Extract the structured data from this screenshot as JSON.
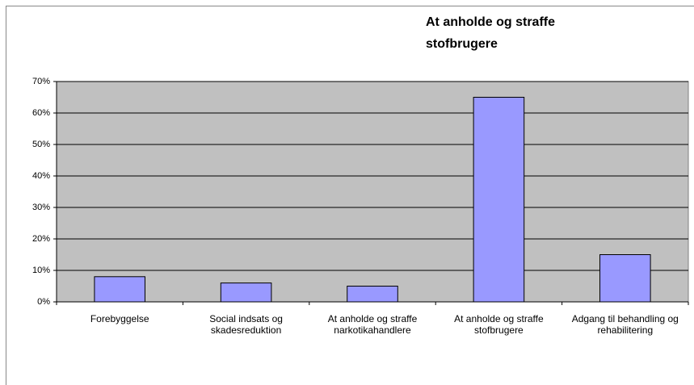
{
  "chart_data": {
    "type": "bar",
    "title": "At anholde og straffe stofbrugere",
    "categories": [
      "Forebyggelse",
      "Social indsats og skadesreduktion",
      "At anholde og straffe narkotikahandlere",
      "At anholde og straffe stofbrugere",
      "Adgang til behandling og rehabilitering"
    ],
    "values": [
      8,
      6,
      5,
      65,
      15
    ],
    "color": "#9999ff",
    "ylim": [
      0,
      70
    ],
    "yticks": [
      {
        "value": 0,
        "label": "0%"
      },
      {
        "value": 10,
        "label": "10%"
      },
      {
        "value": 20,
        "label": "20%"
      },
      {
        "value": 30,
        "label": "30%"
      },
      {
        "value": 40,
        "label": "40%"
      },
      {
        "value": 50,
        "label": "50%"
      },
      {
        "value": 60,
        "label": "60%"
      },
      {
        "value": 70,
        "label": "70%"
      }
    ],
    "grid": true
  }
}
